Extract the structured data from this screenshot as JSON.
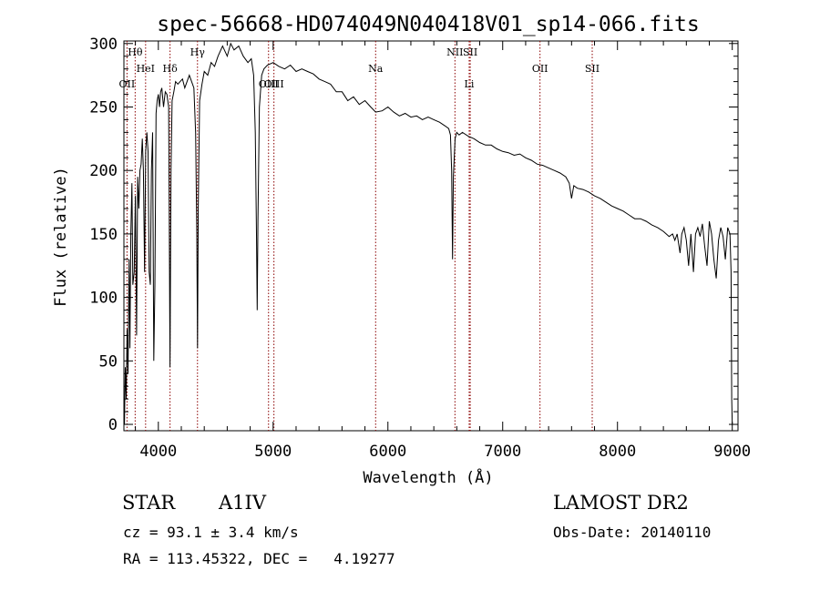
{
  "chart_data": {
    "type": "line",
    "title": "spec-56668-HD074049N040418V01_sp14-066.fits",
    "xlabel": "Wavelength (Å)",
    "ylabel": "Flux (relative)",
    "xlim": [
      3700,
      9050
    ],
    "ylim": [
      -5,
      302
    ],
    "xticks": [
      4000,
      5000,
      6000,
      7000,
      8000,
      9000
    ],
    "yticks": [
      0,
      50,
      100,
      150,
      200,
      250,
      300
    ],
    "grid": false,
    "line_color": "#000000",
    "marker_color": "#8b0000",
    "spectral_lines": [
      {
        "name": "Hθ",
        "wavelength": 3798
      },
      {
        "name": "OII",
        "wavelength": 3727
      },
      {
        "name": "HeI",
        "wavelength": 3889
      },
      {
        "name": "Hδ",
        "wavelength": 4102
      },
      {
        "name": "Hγ",
        "wavelength": 4341
      },
      {
        "name": "OIII",
        "wavelength": 4960
      },
      {
        "name": "OIII",
        "wavelength": 5007
      },
      {
        "name": "Na",
        "wavelength": 5893
      },
      {
        "name": "NII",
        "wavelength": 6584
      },
      {
        "name": "SII",
        "wavelength": 6717
      },
      {
        "name": "Li",
        "wavelength": 6708
      },
      {
        "name": "OII",
        "wavelength": 7325
      },
      {
        "name": "SII",
        "wavelength": 7780
      }
    ],
    "series": [
      {
        "values": [
          [
            3705,
            0
          ],
          [
            3712,
            45
          ],
          [
            3720,
            20
          ],
          [
            3728,
            75
          ],
          [
            3736,
            40
          ],
          [
            3745,
            130
          ],
          [
            3752,
            60
          ],
          [
            3760,
            150
          ],
          [
            3770,
            190
          ],
          [
            3778,
            110
          ],
          [
            3790,
            120
          ],
          [
            3800,
            180
          ],
          [
            3810,
            70
          ],
          [
            3820,
            195
          ],
          [
            3830,
            170
          ],
          [
            3840,
            200
          ],
          [
            3850,
            205
          ],
          [
            3860,
            225
          ],
          [
            3870,
            200
          ],
          [
            3880,
            120
          ],
          [
            3890,
            215
          ],
          [
            3900,
            230
          ],
          [
            3910,
            215
          ],
          [
            3920,
            120
          ],
          [
            3930,
            110
          ],
          [
            3940,
            200
          ],
          [
            3950,
            230
          ],
          [
            3960,
            50
          ],
          [
            3970,
            110
          ],
          [
            3980,
            245
          ],
          [
            3990,
            255
          ],
          [
            4000,
            260
          ],
          [
            4010,
            250
          ],
          [
            4020,
            262
          ],
          [
            4030,
            265
          ],
          [
            4045,
            250
          ],
          [
            4060,
            262
          ],
          [
            4075,
            260
          ],
          [
            4090,
            250
          ],
          [
            4095,
            160
          ],
          [
            4102,
            45
          ],
          [
            4110,
            200
          ],
          [
            4120,
            255
          ],
          [
            4135,
            262
          ],
          [
            4150,
            270
          ],
          [
            4170,
            268
          ],
          [
            4190,
            270
          ],
          [
            4210,
            272
          ],
          [
            4230,
            265
          ],
          [
            4250,
            270
          ],
          [
            4270,
            275
          ],
          [
            4290,
            270
          ],
          [
            4310,
            265
          ],
          [
            4325,
            230
          ],
          [
            4335,
            150
          ],
          [
            4341,
            60
          ],
          [
            4348,
            170
          ],
          [
            4360,
            255
          ],
          [
            4380,
            268
          ],
          [
            4400,
            278
          ],
          [
            4430,
            275
          ],
          [
            4460,
            285
          ],
          [
            4490,
            282
          ],
          [
            4520,
            290
          ],
          [
            4560,
            298
          ],
          [
            4600,
            290
          ],
          [
            4630,
            300
          ],
          [
            4660,
            295
          ],
          [
            4700,
            298
          ],
          [
            4740,
            290
          ],
          [
            4780,
            285
          ],
          [
            4810,
            288
          ],
          [
            4830,
            275
          ],
          [
            4845,
            230
          ],
          [
            4855,
            150
          ],
          [
            4861,
            90
          ],
          [
            4868,
            160
          ],
          [
            4880,
            250
          ],
          [
            4900,
            275
          ],
          [
            4920,
            280
          ],
          [
            4950,
            283
          ],
          [
            5000,
            285
          ],
          [
            5050,
            282
          ],
          [
            5100,
            280
          ],
          [
            5150,
            283
          ],
          [
            5200,
            278
          ],
          [
            5250,
            280
          ],
          [
            5300,
            278
          ],
          [
            5350,
            276
          ],
          [
            5400,
            272
          ],
          [
            5450,
            270
          ],
          [
            5500,
            268
          ],
          [
            5550,
            262
          ],
          [
            5600,
            262
          ],
          [
            5650,
            255
          ],
          [
            5700,
            258
          ],
          [
            5750,
            252
          ],
          [
            5800,
            255
          ],
          [
            5850,
            250
          ],
          [
            5893,
            246
          ],
          [
            5950,
            247
          ],
          [
            6000,
            250
          ],
          [
            6050,
            246
          ],
          [
            6100,
            243
          ],
          [
            6150,
            245
          ],
          [
            6200,
            242
          ],
          [
            6250,
            243
          ],
          [
            6300,
            240
          ],
          [
            6350,
            242
          ],
          [
            6400,
            240
          ],
          [
            6450,
            238
          ],
          [
            6500,
            235
          ],
          [
            6530,
            233
          ],
          [
            6545,
            228
          ],
          [
            6555,
            200
          ],
          [
            6563,
            130
          ],
          [
            6570,
            195
          ],
          [
            6585,
            225
          ],
          [
            6600,
            230
          ],
          [
            6620,
            228
          ],
          [
            6650,
            230
          ],
          [
            6700,
            227
          ],
          [
            6750,
            225
          ],
          [
            6800,
            222
          ],
          [
            6850,
            220
          ],
          [
            6900,
            220
          ],
          [
            6950,
            217
          ],
          [
            7000,
            215
          ],
          [
            7050,
            214
          ],
          [
            7100,
            212
          ],
          [
            7150,
            213
          ],
          [
            7200,
            210
          ],
          [
            7250,
            208
          ],
          [
            7300,
            205
          ],
          [
            7350,
            204
          ],
          [
            7400,
            202
          ],
          [
            7450,
            200
          ],
          [
            7500,
            198
          ],
          [
            7550,
            195
          ],
          [
            7580,
            190
          ],
          [
            7600,
            178
          ],
          [
            7620,
            188
          ],
          [
            7650,
            186
          ],
          [
            7700,
            185
          ],
          [
            7750,
            183
          ],
          [
            7800,
            180
          ],
          [
            7850,
            178
          ],
          [
            7900,
            175
          ],
          [
            7950,
            172
          ],
          [
            8000,
            170
          ],
          [
            8050,
            168
          ],
          [
            8100,
            165
          ],
          [
            8150,
            162
          ],
          [
            8200,
            162
          ],
          [
            8250,
            160
          ],
          [
            8300,
            157
          ],
          [
            8350,
            155
          ],
          [
            8400,
            152
          ],
          [
            8450,
            148
          ],
          [
            8480,
            150
          ],
          [
            8500,
            145
          ],
          [
            8520,
            150
          ],
          [
            8545,
            135
          ],
          [
            8560,
            150
          ],
          [
            8580,
            155
          ],
          [
            8600,
            145
          ],
          [
            8620,
            125
          ],
          [
            8640,
            150
          ],
          [
            8662,
            120
          ],
          [
            8680,
            150
          ],
          [
            8700,
            155
          ],
          [
            8720,
            148
          ],
          [
            8740,
            158
          ],
          [
            8760,
            140
          ],
          [
            8780,
            125
          ],
          [
            8800,
            160
          ],
          [
            8820,
            150
          ],
          [
            8840,
            130
          ],
          [
            8860,
            115
          ],
          [
            8880,
            145
          ],
          [
            8900,
            155
          ],
          [
            8920,
            148
          ],
          [
            8940,
            130
          ],
          [
            8960,
            155
          ],
          [
            8980,
            150
          ],
          [
            8990,
            120
          ],
          [
            8995,
            20
          ],
          [
            9000,
            0
          ]
        ]
      }
    ]
  },
  "footer": {
    "object_type": "STAR",
    "spectral_class": "A1IV",
    "redshift": "cz = 93.1 ± 3.4 km/s",
    "coords": "RA = 113.45322, DEC =   4.19277",
    "survey": "LAMOST DR2",
    "obs_date": "Obs-Date: 20140110"
  }
}
